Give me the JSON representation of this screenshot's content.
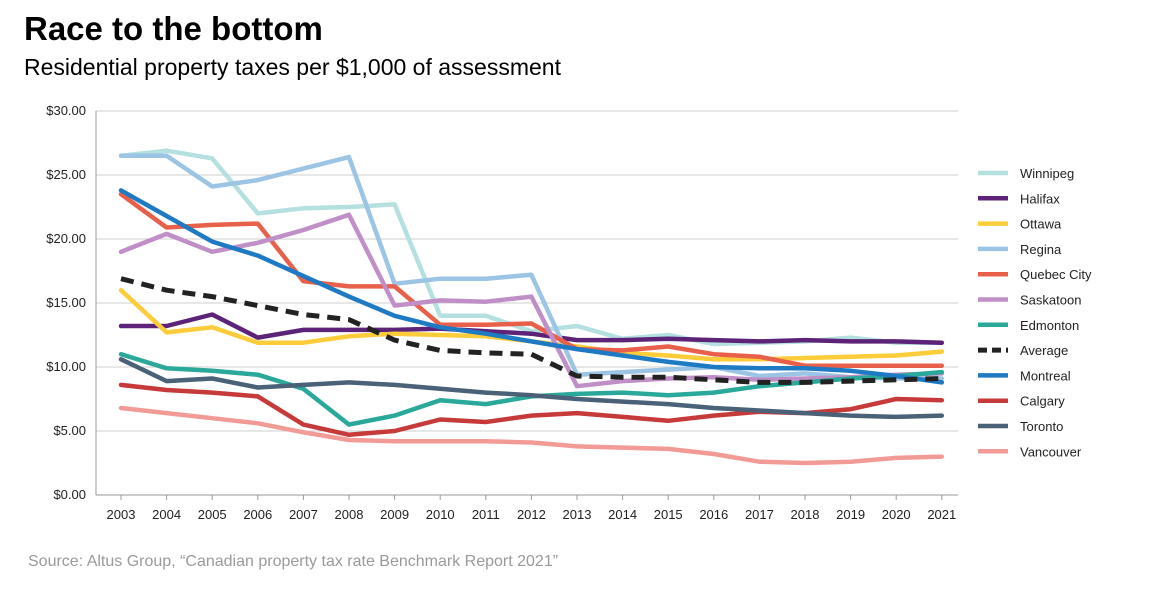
{
  "header": {
    "title": "Race to the bottom",
    "subtitle": "Residential property taxes per $1,000 of assessment"
  },
  "footer": {
    "source": "Source: Altus Group, “Canadian property tax rate Benchmark Report 2021”"
  },
  "chart_data": {
    "type": "line",
    "title": "Race to the bottom",
    "subtitle": "Residential property taxes per $1,000 of assessment",
    "xlabel": "",
    "ylabel": "",
    "ylim": [
      0,
      30
    ],
    "yticks": [
      0,
      5,
      10,
      15,
      20,
      25,
      30
    ],
    "ytick_labels": [
      "$0.00",
      "$5.00",
      "$10.00",
      "$15.00",
      "$20.00",
      "$25.00",
      "$30.00"
    ],
    "grid": true,
    "legend_position": "right",
    "x": [
      "2003",
      "2004",
      "2005",
      "2006",
      "2007",
      "2008",
      "2009",
      "2010",
      "2011",
      "2012",
      "2013",
      "2014",
      "2015",
      "2016",
      "2017",
      "2018",
      "2019",
      "2020",
      "2021"
    ],
    "series": [
      {
        "name": "Winnipeg",
        "color": "#b4e0e0",
        "dashed": false,
        "values": [
          26.5,
          26.9,
          26.3,
          22.0,
          22.4,
          22.5,
          22.7,
          14.0,
          14.0,
          12.8,
          13.2,
          12.2,
          12.5,
          11.8,
          11.9,
          12.0,
          12.3,
          11.9,
          11.9
        ]
      },
      {
        "name": "Halifax",
        "color": "#5c2378",
        "dashed": false,
        "values": [
          13.2,
          13.2,
          14.1,
          12.3,
          12.9,
          12.9,
          12.9,
          13.0,
          12.8,
          12.6,
          12.1,
          12.1,
          12.2,
          12.1,
          12.0,
          12.1,
          12.0,
          12.0,
          11.9
        ]
      },
      {
        "name": "Ottawa",
        "color": "#fccc3a",
        "dashed": false,
        "values": [
          16.0,
          12.7,
          13.1,
          11.9,
          11.9,
          12.4,
          12.6,
          12.5,
          12.4,
          12.0,
          11.6,
          11.1,
          10.9,
          10.6,
          10.6,
          10.7,
          10.8,
          10.9,
          11.2
        ]
      },
      {
        "name": "Regina",
        "color": "#9cc4e4",
        "dashed": false,
        "values": [
          26.5,
          26.5,
          24.1,
          24.6,
          25.5,
          26.4,
          16.5,
          16.9,
          16.9,
          17.2,
          9.4,
          9.6,
          9.8,
          10.0,
          9.3,
          9.5,
          9.2,
          9.1,
          9.1
        ]
      },
      {
        "name": "Quebec City",
        "color": "#e8604a",
        "dashed": false,
        "values": [
          23.5,
          20.9,
          21.1,
          21.2,
          16.7,
          16.3,
          16.3,
          13.3,
          13.3,
          13.4,
          11.4,
          11.3,
          11.6,
          11.0,
          10.8,
          10.1,
          10.1,
          10.1,
          10.1
        ]
      },
      {
        "name": "Saskatoon",
        "color": "#c18fc8",
        "dashed": false,
        "values": [
          19.0,
          20.4,
          19.0,
          19.7,
          20.7,
          21.9,
          14.8,
          15.2,
          15.1,
          15.5,
          8.5,
          8.9,
          9.1,
          9.2,
          9.0,
          9.1,
          9.2,
          9.4,
          9.5
        ]
      },
      {
        "name": "Edmonton",
        "color": "#2aa89a",
        "dashed": false,
        "values": [
          11.0,
          9.9,
          9.7,
          9.4,
          8.3,
          5.5,
          6.2,
          7.4,
          7.1,
          7.7,
          7.9,
          8.0,
          7.8,
          8.0,
          8.5,
          8.8,
          9.1,
          9.3,
          9.6
        ]
      },
      {
        "name": "Average",
        "color": "#222222",
        "dashed": true,
        "values": [
          16.9,
          16.0,
          15.5,
          14.8,
          14.1,
          13.7,
          12.1,
          11.3,
          11.1,
          11.0,
          9.3,
          9.2,
          9.2,
          9.0,
          8.8,
          8.8,
          8.9,
          9.0,
          9.1
        ]
      },
      {
        "name": "Montreal",
        "color": "#1f7ac4",
        "dashed": false,
        "values": [
          23.8,
          21.8,
          19.8,
          18.7,
          17.1,
          15.5,
          14.0,
          13.1,
          12.6,
          12.0,
          11.4,
          10.9,
          10.4,
          10.0,
          9.9,
          9.9,
          9.7,
          9.3,
          8.8
        ]
      },
      {
        "name": "Calgary",
        "color": "#c63a3a",
        "dashed": false,
        "values": [
          8.6,
          8.2,
          8.0,
          7.7,
          5.5,
          4.7,
          5.0,
          5.9,
          5.7,
          6.2,
          6.4,
          6.1,
          5.8,
          6.2,
          6.5,
          6.4,
          6.7,
          7.5,
          7.4
        ]
      },
      {
        "name": "Toronto",
        "color": "#4a6178",
        "dashed": false,
        "values": [
          10.6,
          8.9,
          9.1,
          8.4,
          8.6,
          8.8,
          8.6,
          8.3,
          8.0,
          7.8,
          7.5,
          7.3,
          7.1,
          6.8,
          6.6,
          6.4,
          6.2,
          6.1,
          6.2
        ]
      },
      {
        "name": "Vancouver",
        "color": "#f29b96",
        "dashed": false,
        "values": [
          6.8,
          6.4,
          6.0,
          5.6,
          4.9,
          4.3,
          4.2,
          4.2,
          4.2,
          4.1,
          3.8,
          3.7,
          3.6,
          3.2,
          2.6,
          2.5,
          2.6,
          2.9,
          3.0
        ]
      }
    ]
  }
}
